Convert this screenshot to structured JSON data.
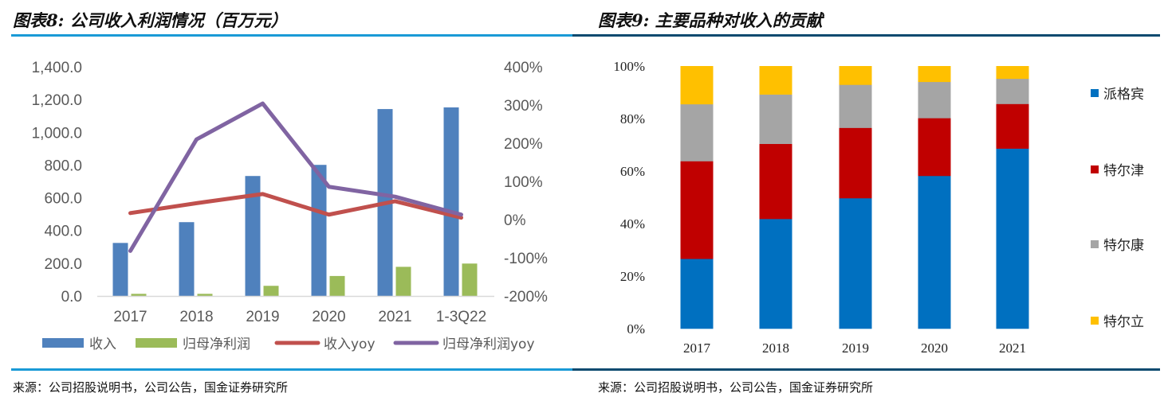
{
  "left_title": "图表8: 公司收入利润情况（百万元）",
  "right_title": "图表9: 主要品种对收入的贡献",
  "left_source": "来源：公司招股说明书，公司公告，国金证券研究所",
  "right_source": "来源：公司招股说明书，公司公告，国金证券研究所",
  "colors": {
    "rule_left": "#1a9ad6",
    "rule_right": "#0b4a6f"
  },
  "chart_data": [
    {
      "type": "bar+line",
      "categories": [
        "2017",
        "2018",
        "2019",
        "2020",
        "2021",
        "1-3Q22"
      ],
      "y_left": {
        "range": [
          0,
          1400
        ],
        "ticks": [
          "0.0",
          "200.0",
          "400.0",
          "600.0",
          "800.0",
          "1,000.0",
          "1,200.0",
          "1,400.0"
        ]
      },
      "y_right": {
        "range": [
          -200,
          400
        ],
        "ticks": [
          "-200%",
          "-100%",
          "0%",
          "100%",
          "200%",
          "300%",
          "400%"
        ]
      },
      "grid": false,
      "legend_position": "bottom",
      "series": [
        {
          "name": "收入",
          "kind": "bar",
          "axis": "left",
          "color": "#4f81bd",
          "values": [
            324,
            451,
            733,
            801,
            1142,
            1152
          ]
        },
        {
          "name": "归母净利润",
          "kind": "bar",
          "axis": "left",
          "color": "#9bbb59",
          "values": [
            13,
            13,
            62,
            122,
            178,
            198
          ]
        },
        {
          "name": "收入yoy",
          "kind": "line",
          "axis": "right",
          "unit": "%",
          "color": "#c0504d",
          "values": [
            17,
            43,
            67,
            13,
            48,
            5
          ]
        },
        {
          "name": "归母净利润yoy",
          "kind": "line",
          "axis": "right",
          "unit": "%",
          "color": "#8064a2",
          "values": [
            -82,
            210,
            304,
            86,
            60,
            13
          ]
        }
      ]
    },
    {
      "type": "stacked-bar-100",
      "categories": [
        "2017",
        "2018",
        "2019",
        "2020",
        "2021"
      ],
      "y": {
        "range": [
          0,
          100
        ],
        "ticks": [
          "0%",
          "20%",
          "40%",
          "60%",
          "80%",
          "100%"
        ]
      },
      "grid": false,
      "legend_position": "right",
      "series": [
        {
          "name": "派格宾",
          "color": "#0070c0",
          "values": [
            26.6,
            41.8,
            49.7,
            58.2,
            68.6
          ]
        },
        {
          "name": "特尔津",
          "color": "#c00000",
          "values": [
            37.2,
            28.6,
            26.8,
            22.0,
            17.0
          ]
        },
        {
          "name": "特尔康",
          "color": "#a5a5a5",
          "values": [
            21.7,
            18.8,
            16.4,
            13.8,
            9.6
          ]
        },
        {
          "name": "特尔立",
          "color": "#ffc000",
          "values": [
            14.5,
            10.8,
            7.1,
            6.0,
            4.8
          ]
        }
      ]
    }
  ]
}
